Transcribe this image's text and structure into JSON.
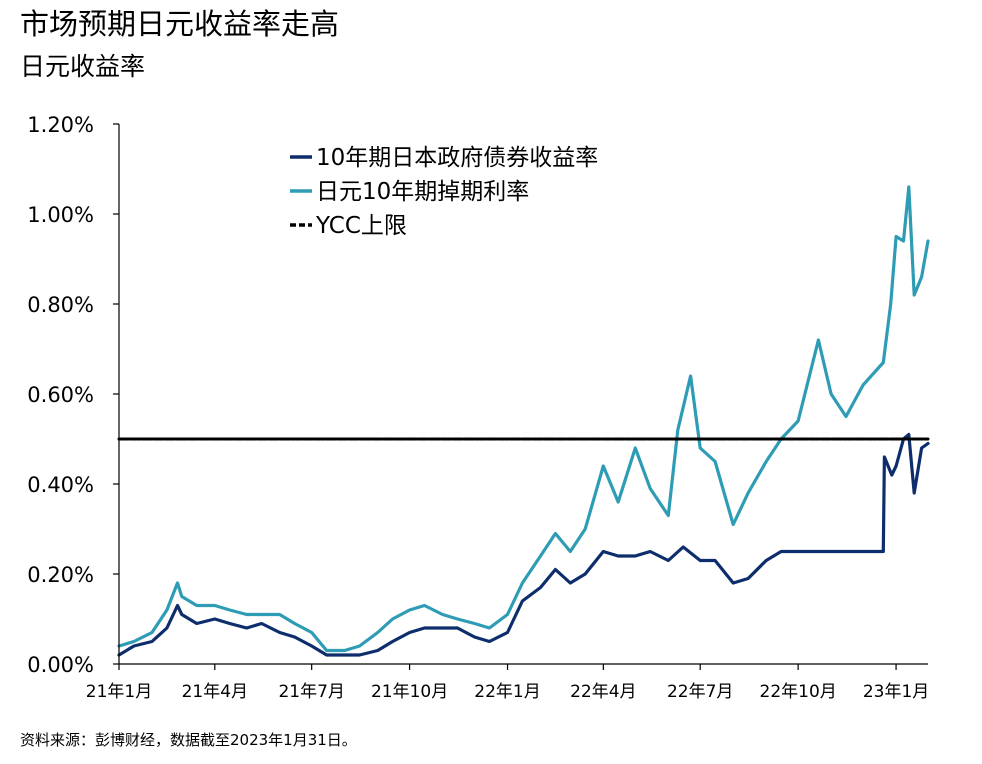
{
  "title": "市场预期日元收益率走高",
  "subtitle": "日元收益率",
  "source": "资料来源：彭博财经，数据截至2023年1月31日。",
  "colors": {
    "jgb_10y": "#0d2d6c",
    "swap_10y": "#2e9cb5",
    "ycc": "#000000",
    "axis": "#000000"
  },
  "chart_data": {
    "type": "line",
    "xlabel": "",
    "ylabel": "",
    "x_tick_labels": [
      "21年1月",
      "21年4月",
      "21年7月",
      "21年10月",
      "22年1月",
      "22年4月",
      "22年7月",
      "22年10月",
      "23年1月"
    ],
    "x_tick_months": [
      "2021-01",
      "2021-04",
      "2021-07",
      "2021-10",
      "2022-01",
      "2022-04",
      "2022-07",
      "2022-10",
      "2023-01"
    ],
    "x_range": [
      "2021-01",
      "2023-01-31"
    ],
    "y_tick_labels": [
      "0.00%",
      "0.20%",
      "0.40%",
      "0.60%",
      "0.80%",
      "1.00%",
      "1.20%"
    ],
    "ylim": [
      0,
      1.2
    ],
    "legend_position": "top-center",
    "series": [
      {
        "name": "10年期日本政府债券收益率",
        "style": "solid",
        "points": [
          [
            "2021-01",
            0.02
          ],
          [
            "2021-01-15",
            0.04
          ],
          [
            "2021-02",
            0.05
          ],
          [
            "2021-02-15",
            0.08
          ],
          [
            "2021-02-25",
            0.13
          ],
          [
            "2021-03",
            0.11
          ],
          [
            "2021-03-15",
            0.09
          ],
          [
            "2021-04",
            0.1
          ],
          [
            "2021-04-15",
            0.09
          ],
          [
            "2021-05",
            0.08
          ],
          [
            "2021-05-15",
            0.09
          ],
          [
            "2021-06",
            0.07
          ],
          [
            "2021-06-15",
            0.06
          ],
          [
            "2021-07",
            0.04
          ],
          [
            "2021-07-15",
            0.02
          ],
          [
            "2021-08",
            0.02
          ],
          [
            "2021-08-15",
            0.02
          ],
          [
            "2021-09",
            0.03
          ],
          [
            "2021-09-15",
            0.05
          ],
          [
            "2021-10",
            0.07
          ],
          [
            "2021-10-15",
            0.08
          ],
          [
            "2021-11",
            0.08
          ],
          [
            "2021-11-15",
            0.08
          ],
          [
            "2021-12",
            0.06
          ],
          [
            "2021-12-15",
            0.05
          ],
          [
            "2022-01",
            0.07
          ],
          [
            "2022-01-15",
            0.14
          ],
          [
            "2022-02",
            0.17
          ],
          [
            "2022-02-15",
            0.21
          ],
          [
            "2022-03",
            0.18
          ],
          [
            "2022-03-15",
            0.2
          ],
          [
            "2022-04",
            0.25
          ],
          [
            "2022-04-15",
            0.24
          ],
          [
            "2022-05",
            0.24
          ],
          [
            "2022-05-15",
            0.25
          ],
          [
            "2022-06",
            0.23
          ],
          [
            "2022-06-15",
            0.26
          ],
          [
            "2022-07",
            0.23
          ],
          [
            "2022-07-15",
            0.23
          ],
          [
            "2022-08",
            0.18
          ],
          [
            "2022-08-15",
            0.19
          ],
          [
            "2022-09",
            0.23
          ],
          [
            "2022-09-15",
            0.25
          ],
          [
            "2022-10",
            0.25
          ],
          [
            "2022-10-15",
            0.25
          ],
          [
            "2022-11",
            0.25
          ],
          [
            "2022-11-15",
            0.25
          ],
          [
            "2022-12",
            0.25
          ],
          [
            "2022-12-20",
            0.25
          ],
          [
            "2022-12-21",
            0.46
          ],
          [
            "2022-12-28",
            0.42
          ],
          [
            "2023-01",
            0.44
          ],
          [
            "2023-01-08",
            0.5
          ],
          [
            "2023-01-13",
            0.51
          ],
          [
            "2023-01-18",
            0.38
          ],
          [
            "2023-01-25",
            0.48
          ],
          [
            "2023-01-31",
            0.49
          ]
        ]
      },
      {
        "name": "日元10年期掉期利率",
        "style": "solid",
        "points": [
          [
            "2021-01",
            0.04
          ],
          [
            "2021-01-15",
            0.05
          ],
          [
            "2021-02",
            0.07
          ],
          [
            "2021-02-15",
            0.12
          ],
          [
            "2021-02-25",
            0.18
          ],
          [
            "2021-03",
            0.15
          ],
          [
            "2021-03-15",
            0.13
          ],
          [
            "2021-04",
            0.13
          ],
          [
            "2021-04-15",
            0.12
          ],
          [
            "2021-05",
            0.11
          ],
          [
            "2021-05-15",
            0.11
          ],
          [
            "2021-06",
            0.11
          ],
          [
            "2021-06-15",
            0.09
          ],
          [
            "2021-07",
            0.07
          ],
          [
            "2021-07-15",
            0.03
          ],
          [
            "2021-08",
            0.03
          ],
          [
            "2021-08-15",
            0.04
          ],
          [
            "2021-09",
            0.07
          ],
          [
            "2021-09-15",
            0.1
          ],
          [
            "2021-10",
            0.12
          ],
          [
            "2021-10-15",
            0.13
          ],
          [
            "2021-11",
            0.11
          ],
          [
            "2021-11-15",
            0.1
          ],
          [
            "2021-12",
            0.09
          ],
          [
            "2021-12-15",
            0.08
          ],
          [
            "2022-01",
            0.11
          ],
          [
            "2022-01-15",
            0.18
          ],
          [
            "2022-02",
            0.24
          ],
          [
            "2022-02-15",
            0.29
          ],
          [
            "2022-03",
            0.25
          ],
          [
            "2022-03-15",
            0.3
          ],
          [
            "2022-04",
            0.44
          ],
          [
            "2022-04-15",
            0.36
          ],
          [
            "2022-05",
            0.48
          ],
          [
            "2022-05-15",
            0.39
          ],
          [
            "2022-06",
            0.33
          ],
          [
            "2022-06-10",
            0.52
          ],
          [
            "2022-06-22",
            0.64
          ],
          [
            "2022-07",
            0.48
          ],
          [
            "2022-07-15",
            0.45
          ],
          [
            "2022-08",
            0.31
          ],
          [
            "2022-08-15",
            0.38
          ],
          [
            "2022-09",
            0.45
          ],
          [
            "2022-09-15",
            0.5
          ],
          [
            "2022-10",
            0.54
          ],
          [
            "2022-10-20",
            0.72
          ],
          [
            "2022-11",
            0.6
          ],
          [
            "2022-11-15",
            0.55
          ],
          [
            "2022-12",
            0.62
          ],
          [
            "2022-12-20",
            0.67
          ],
          [
            "2022-12-27",
            0.8
          ],
          [
            "2023-01",
            0.95
          ],
          [
            "2023-01-08",
            0.94
          ],
          [
            "2023-01-13",
            1.06
          ],
          [
            "2023-01-18",
            0.82
          ],
          [
            "2023-01-25",
            0.86
          ],
          [
            "2023-01-31",
            0.94
          ]
        ]
      },
      {
        "name": "YCC上限",
        "style": "dashed",
        "points": [
          [
            "2021-01",
            0.5
          ],
          [
            "2023-01-31",
            0.5
          ]
        ]
      }
    ]
  }
}
